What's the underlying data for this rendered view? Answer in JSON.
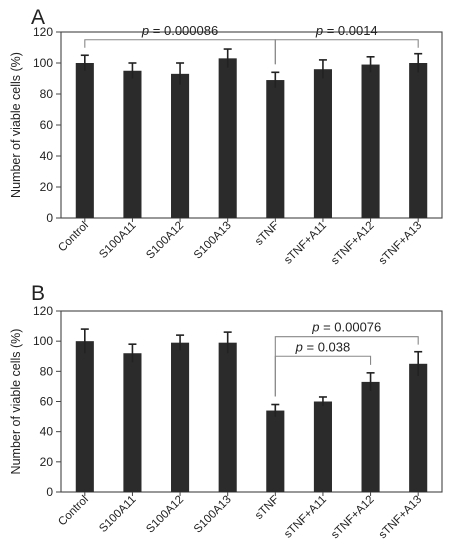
{
  "chart_data": [
    {
      "type": "bar",
      "panel_label": "A",
      "title": "",
      "xlabel": "",
      "ylabel": "Number of viable cells (%)",
      "ylim": [
        0,
        120
      ],
      "yticks": [
        0,
        20,
        40,
        60,
        80,
        100,
        120
      ],
      "categories": [
        "Control",
        "S100A11",
        "S100A12",
        "S100A13",
        "sTNF",
        "sTNF+A11",
        "sTNF+A12",
        "sTNF+A13"
      ],
      "values": [
        100,
        95,
        93,
        103,
        89,
        96,
        99,
        100
      ],
      "errors": [
        5,
        5,
        7,
        6,
        5,
        6,
        5,
        6
      ],
      "bar_color": "#2b2b2b",
      "annotations": [
        {
          "from": 0,
          "to": 4,
          "prefix": "p",
          "text": " = 0.000086",
          "line_value": 115
        },
        {
          "from": 4,
          "to": 7,
          "prefix": "p",
          "text": " = 0.0014",
          "line_value": 115
        }
      ]
    },
    {
      "type": "bar",
      "panel_label": "B",
      "title": "",
      "xlabel": "",
      "ylabel": "Number of viable cells (%)",
      "ylim": [
        0,
        120
      ],
      "yticks": [
        0,
        20,
        40,
        60,
        80,
        100,
        120
      ],
      "categories": [
        "Control",
        "S100A11",
        "S100A12",
        "S100A13",
        "sTNF",
        "sTNF+A11",
        "sTNF+A12",
        "sTNF+A13"
      ],
      "values": [
        100,
        92,
        99,
        99,
        54,
        60,
        73,
        85
      ],
      "errors": [
        8,
        6,
        5,
        7,
        4,
        3,
        6,
        8
      ],
      "bar_color": "#2b2b2b",
      "annotations": [
        {
          "from": 4,
          "to": 6,
          "prefix": "p",
          "text": " = 0.038",
          "line_value": 90
        },
        {
          "from": 4,
          "to": 7,
          "prefix": "p",
          "text": " = 0.00076",
          "line_value": 103
        }
      ]
    }
  ]
}
